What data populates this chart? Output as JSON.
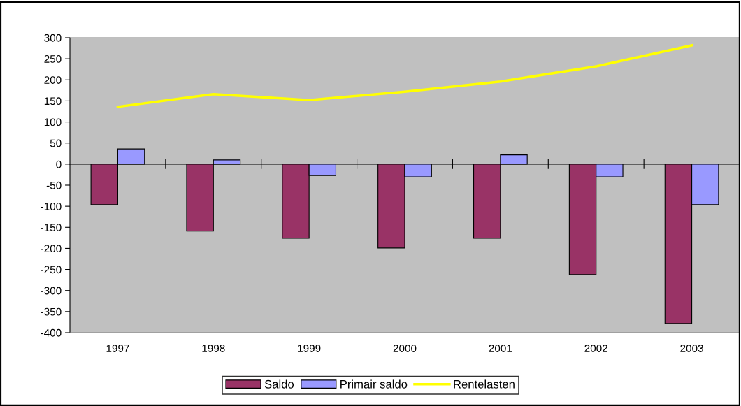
{
  "chart_data": {
    "type": "bar",
    "categories": [
      "1997",
      "1998",
      "1999",
      "2000",
      "2001",
      "2002",
      "2003"
    ],
    "series": [
      {
        "name": "Saldo",
        "color": "#993366",
        "values": [
          -96,
          -159,
          -176,
          -199,
          -176,
          -262,
          -378
        ]
      },
      {
        "name": "Primair saldo",
        "color": "#9999ff",
        "values": [
          36,
          10,
          -27,
          -30,
          22,
          -30,
          -96
        ]
      },
      {
        "name": "Rentelasten",
        "color": "#ffff00",
        "type": "line",
        "values": [
          136,
          166,
          152,
          172,
          196,
          232,
          282
        ]
      }
    ],
    "ylim": [
      -400,
      300
    ],
    "yticks": [
      -400,
      -350,
      -300,
      -250,
      -200,
      -150,
      -100,
      -50,
      0,
      50,
      100,
      150,
      200,
      250,
      300
    ],
    "legend": "bottom",
    "marker": "none",
    "line_style": "solid"
  }
}
